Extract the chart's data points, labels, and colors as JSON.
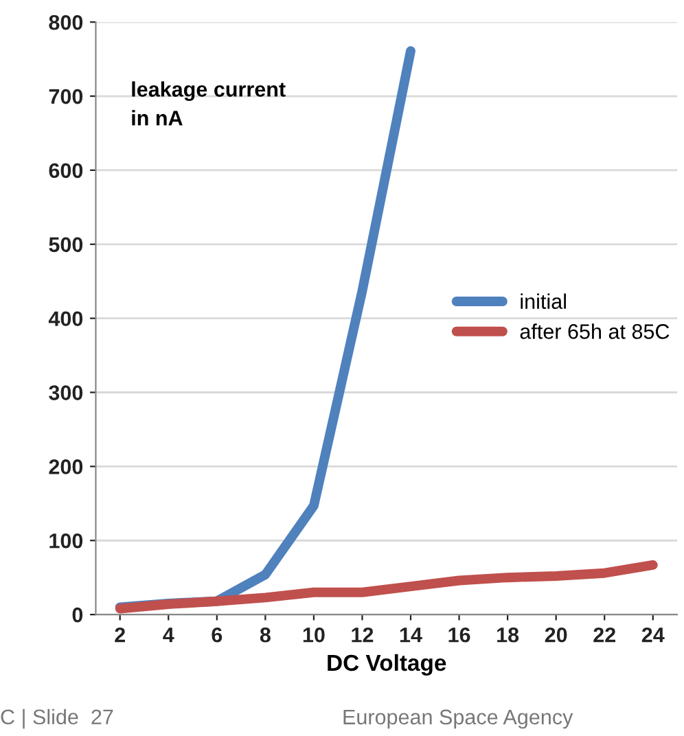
{
  "chart_data": {
    "type": "line",
    "xlabel": "DC Voltage",
    "categories": [
      "2",
      "4",
      "6",
      "8",
      "10",
      "12",
      "14",
      "16",
      "18",
      "20",
      "22",
      "24"
    ],
    "series": [
      {
        "name": "initial",
        "color": "#4f81bd",
        "values": [
          10,
          15,
          18,
          54,
          147,
          437,
          761,
          null,
          null,
          null,
          null,
          null
        ]
      },
      {
        "name": "after 65h at 85C",
        "color": "#c0504d",
        "values": [
          8,
          14,
          18,
          23,
          30,
          30,
          38,
          46,
          50,
          52,
          56,
          67
        ]
      }
    ],
    "ylim": [
      0,
      800
    ],
    "yticks": [
      0,
      100,
      200,
      300,
      400,
      500,
      600,
      700,
      800
    ],
    "grid": "y",
    "legend": "right",
    "marker": "none",
    "line_style": "solid",
    "annotations": [
      "leakage current\nin nA",
      "C | Slide  27",
      "European Space Agency"
    ]
  }
}
